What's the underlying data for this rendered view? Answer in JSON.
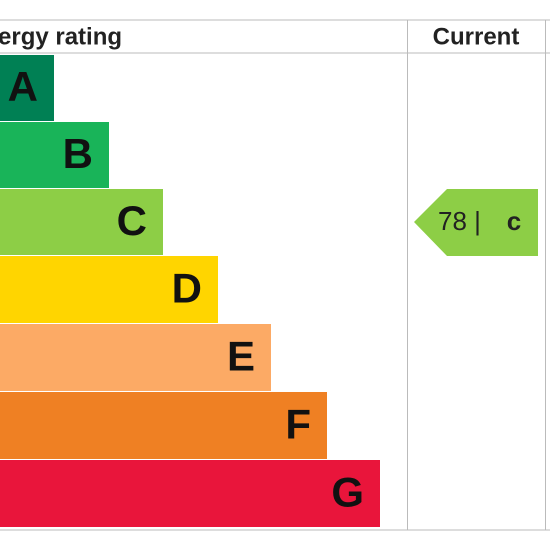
{
  "header": {
    "title": "ergy rating",
    "current": "Current"
  },
  "bands": [
    {
      "letter": "A",
      "color": "#008054"
    },
    {
      "letter": "B",
      "color": "#19b459"
    },
    {
      "letter": "C",
      "color": "#8dce46"
    },
    {
      "letter": "D",
      "color": "#ffd500"
    },
    {
      "letter": "E",
      "color": "#fcaa65"
    },
    {
      "letter": "F",
      "color": "#ef8023"
    },
    {
      "letter": "G",
      "color": "#e9153b"
    }
  ],
  "current": {
    "score": "78 |",
    "band": "c",
    "color": "#8dce46"
  }
}
